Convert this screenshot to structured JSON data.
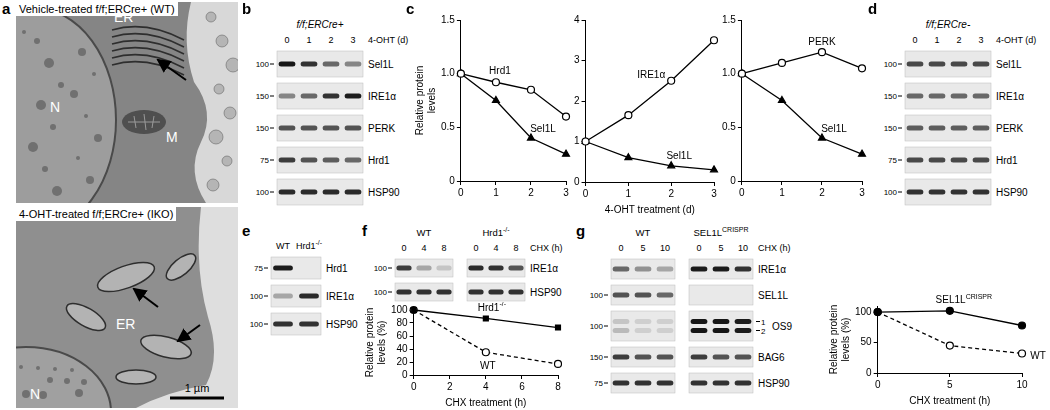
{
  "panel_labels": [
    "a",
    "b",
    "c",
    "d",
    "e",
    "f",
    "g"
  ],
  "em": [
    {
      "caption": "Vehicle-treated f/f;ERCre+ (WT)",
      "labels": [
        "N",
        "ER",
        "M"
      ]
    },
    {
      "caption": "4-OHT-treated f/f;ERCre+ (IKO)",
      "labels": [
        "N",
        "ER"
      ],
      "scale_bar": "1 µm"
    }
  ],
  "blots": [
    {
      "header": "f/f;ERCre+",
      "condition": "4-OHT (d)",
      "groups": [
        {
          "lanes": [
            "0",
            "1",
            "2",
            "3"
          ]
        }
      ],
      "rows": [
        {
          "name": "Sel1L",
          "marker": 100,
          "intensity": [
            1,
            0.85,
            0.6,
            0.45
          ]
        },
        {
          "name": "IRE1α",
          "marker": 150,
          "intensity": [
            0.45,
            0.6,
            0.85,
            0.95
          ]
        },
        {
          "name": "PERK",
          "marker": 150,
          "intensity": [
            0.7,
            0.7,
            0.7,
            0.7
          ]
        },
        {
          "name": "Hrd1",
          "marker": 75,
          "intensity": [
            0.8,
            0.7,
            0.65,
            0.6
          ]
        },
        {
          "name": "HSP90",
          "marker": 100,
          "intensity": [
            0.9,
            0.9,
            0.9,
            0.9
          ]
        }
      ]
    },
    {
      "header": "f/f;ERCre-",
      "condition": "4-OHT (d)",
      "groups": [
        {
          "lanes": [
            "0",
            "1",
            "2",
            "3"
          ]
        }
      ],
      "rows": [
        {
          "name": "Sel1L",
          "marker": 100,
          "intensity": [
            0.75,
            0.75,
            0.75,
            0.75
          ]
        },
        {
          "name": "IRE1α",
          "marker": 150,
          "intensity": [
            0.6,
            0.6,
            0.6,
            0.6
          ]
        },
        {
          "name": "PERK",
          "marker": 150,
          "intensity": [
            0.65,
            0.65,
            0.65,
            0.65
          ]
        },
        {
          "name": "Hrd1",
          "marker": 75,
          "intensity": [
            0.75,
            0.75,
            0.75,
            0.75
          ]
        },
        {
          "name": "HSP90",
          "marker": 100,
          "intensity": [
            0.85,
            0.85,
            0.85,
            0.85
          ]
        }
      ]
    },
    {
      "groups": [
        {
          "lanes": [
            "WT",
            {
              "text": "Hrd1",
              "sup": "-/-"
            }
          ]
        }
      ],
      "rows": [
        {
          "name": "Hrd1",
          "marker": 75,
          "intensity": [
            0.95,
            0
          ]
        },
        {
          "name": "IRE1α",
          "marker": 100,
          "intensity": [
            0.3,
            0.9
          ]
        },
        {
          "name": "HSP90",
          "marker": 100,
          "intensity": [
            0.85,
            0.85
          ]
        }
      ]
    },
    {
      "condition": "CHX (h)",
      "groups": [
        {
          "name": "WT",
          "lanes": [
            "0",
            "4",
            "8"
          ]
        },
        {
          "name": {
            "text": "Hrd1",
            "sup": "-/-"
          },
          "lanes": [
            "0",
            "4",
            "8"
          ]
        }
      ],
      "rows": [
        {
          "name": "IRE1α",
          "marker": 100,
          "intensity": [
            0.8,
            0.3,
            0.15,
            0.9,
            0.85,
            0.7
          ]
        },
        {
          "name": "HSP90",
          "marker": 100,
          "intensity": [
            0.85,
            0.85,
            0.85,
            0.85,
            0.85,
            0.85
          ]
        }
      ]
    },
    {
      "condition": "CHX (h)",
      "groups": [
        {
          "name": "WT",
          "lanes": [
            "0",
            "5",
            "10"
          ]
        },
        {
          "name": {
            "text": "SEL1L",
            "sup": "CRISPR"
          },
          "lanes": [
            "0",
            "5",
            "10"
          ]
        }
      ],
      "rows": [
        {
          "name": "IRE1α",
          "marker": null,
          "intensity": [
            0.6,
            0.4,
            0.3,
            0.95,
            0.95,
            0.85
          ]
        },
        {
          "name": "SEL1L",
          "marker": 100,
          "intensity": [
            0.7,
            0.7,
            0.6,
            0,
            0,
            0
          ]
        },
        {
          "name": "OS9",
          "marker": 100,
          "bands": [
            {
              "label": "1",
              "intensity": [
                0.15,
                0.1,
                0.1,
                1,
                1,
                0.95
              ]
            },
            {
              "label": "2",
              "intensity": [
                0.2,
                0.1,
                0.1,
                1,
                1,
                0.95
              ]
            }
          ]
        },
        {
          "name": "BAG6",
          "marker": 150,
          "intensity": [
            0.8,
            0.7,
            0.7,
            0.8,
            0.7,
            0.7
          ]
        },
        {
          "name": "HSP90",
          "marker": 75,
          "intensity": [
            0.85,
            0.85,
            0.85,
            0.85,
            0.85,
            0.85
          ]
        }
      ]
    }
  ],
  "chart_data": [
    {
      "type": "line",
      "ylabel": [
        "Relative protein",
        "levels"
      ],
      "x": [
        0,
        1,
        2,
        3
      ],
      "xlim": [
        0,
        3
      ],
      "xticks": [
        0,
        1,
        2,
        3
      ],
      "ylim": [
        0,
        1.5
      ],
      "yticks": [
        0,
        0.5,
        {
          "value": 1,
          "label": "1.0"
        },
        1.5
      ],
      "grid": false,
      "series": [
        {
          "name": "Hrd1",
          "color": "#000000",
          "marker": "open_circle",
          "line_style": "solid",
          "values": [
            1,
            0.92,
            0.85,
            0.6
          ]
        },
        {
          "name": "Sel1L",
          "color": "#000000",
          "marker": "triangle",
          "line_style": "solid",
          "values": [
            1,
            0.75,
            0.4,
            0.25
          ]
        }
      ]
    },
    {
      "type": "line",
      "xlabel": "4-OHT treatment (d)",
      "x": [
        0,
        1,
        2,
        3
      ],
      "xlim": [
        0,
        3
      ],
      "xticks": [
        0,
        1,
        2,
        3
      ],
      "ylim": [
        0,
        4
      ],
      "yticks": [
        0,
        1,
        2,
        3,
        4
      ],
      "grid": false,
      "series": [
        {
          "name": "IRE1α",
          "color": "#000000",
          "marker": "open_circle",
          "line_style": "solid",
          "values": [
            1,
            1.65,
            2.5,
            3.5
          ]
        },
        {
          "name": "Sel1L",
          "color": "#000000",
          "marker": "triangle",
          "line_style": "solid",
          "values": [
            1,
            0.6,
            0.4,
            0.3
          ]
        }
      ]
    },
    {
      "type": "line",
      "x": [
        0,
        1,
        2,
        3
      ],
      "xlim": [
        0,
        3
      ],
      "xticks": [
        0,
        1,
        2,
        3
      ],
      "ylim": [
        0,
        1.5
      ],
      "yticks": [
        0,
        0.5,
        {
          "value": 1,
          "label": "1.0"
        },
        1.5
      ],
      "grid": false,
      "series": [
        {
          "name": "PERK",
          "color": "#000000",
          "marker": "open_circle",
          "line_style": "solid",
          "values": [
            1,
            1.1,
            1.2,
            1.05
          ]
        },
        {
          "name": "Sel1L",
          "color": "#000000",
          "marker": "triangle",
          "line_style": "solid",
          "values": [
            1,
            0.75,
            0.4,
            0.25
          ]
        }
      ]
    },
    {
      "type": "line",
      "xlabel": "CHX treatment (h)",
      "ylabel": [
        "Relative protein",
        "levels (%)"
      ],
      "x": [
        0,
        4,
        8
      ],
      "xlim": [
        0,
        8
      ],
      "xticks": [
        0,
        2,
        4,
        6,
        8
      ],
      "ylim": [
        0,
        100
      ],
      "yticks": [
        0,
        20,
        40,
        60,
        80,
        100
      ],
      "grid": false,
      "series": [
        {
          "name": {
            "text": "Hrd1",
            "sup": "-/-"
          },
          "color": "#000000",
          "marker": "square",
          "line_style": "solid",
          "values": [
            100,
            87,
            73
          ]
        },
        {
          "name": "WT",
          "color": "#000000",
          "marker": "open_circle",
          "line_style": "dashed",
          "values": [
            100,
            35,
            17
          ]
        }
      ]
    },
    {
      "type": "line",
      "xlabel": "CHX treatment (h)",
      "ylabel": [
        "Relative protein",
        "levels (%)"
      ],
      "x": [
        0,
        5,
        10
      ],
      "xlim": [
        0,
        10
      ],
      "xticks": [
        0,
        5,
        10
      ],
      "ylim": [
        0,
        110
      ],
      "yticks": [
        0,
        50,
        100
      ],
      "grid": false,
      "series": [
        {
          "name": {
            "text": "SEL1L",
            "sup": "CRISPR"
          },
          "color": "#000000",
          "marker": "circle",
          "line_style": "solid",
          "values": [
            100,
            102,
            78
          ]
        },
        {
          "name": "WT",
          "color": "#000000",
          "marker": "open_circle",
          "line_style": "dashed",
          "values": [
            100,
            45,
            32
          ]
        }
      ]
    }
  ]
}
